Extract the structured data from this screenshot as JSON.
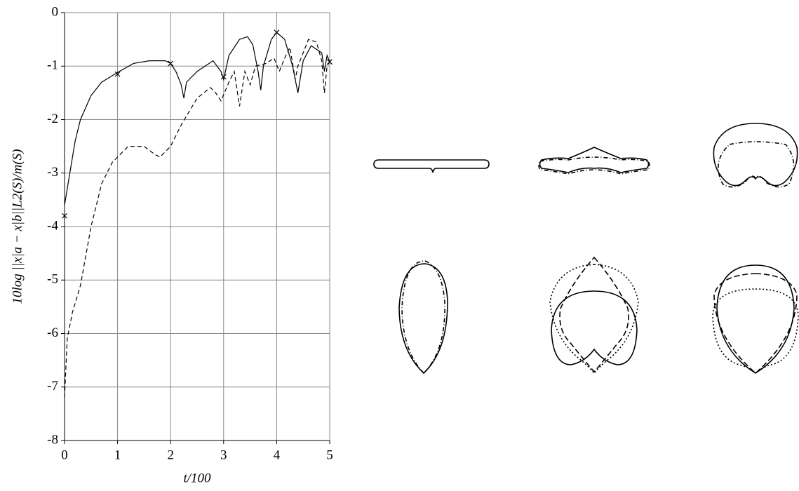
{
  "chart_data": {
    "type": "line",
    "xlabel": "t/100",
    "ylabel": "10log ||x|a − x|b||L2(S)/m(S)",
    "xlim": [
      0,
      5
    ],
    "ylim": [
      -8,
      0
    ],
    "xticks": [
      0,
      1,
      2,
      3,
      4,
      5
    ],
    "yticks": [
      0,
      -1,
      -2,
      -3,
      -4,
      -5,
      -6,
      -7,
      -8
    ],
    "grid": true,
    "series": [
      {
        "color": "#000000",
        "style": "solid",
        "x": [
          0,
          0.1,
          0.2,
          0.3,
          0.5,
          0.7,
          1,
          1.3,
          1.6,
          1.9,
          2.0,
          2.1,
          2.2,
          2.25,
          2.3,
          2.5,
          2.8,
          2.95,
          3.0,
          3.1,
          3.3,
          3.45,
          3.55,
          3.65,
          3.7,
          3.75,
          3.9,
          4.0,
          4.15,
          4.3,
          4.4,
          4.5,
          4.65,
          4.85,
          4.9,
          4.95,
          5.0
        ],
        "values": [
          -3.6,
          -3.0,
          -2.4,
          -2.0,
          -1.55,
          -1.3,
          -1.12,
          -0.95,
          -0.9,
          -0.9,
          -0.95,
          -1.1,
          -1.35,
          -1.6,
          -1.3,
          -1.1,
          -0.9,
          -1.1,
          -1.25,
          -0.8,
          -0.5,
          -0.45,
          -0.6,
          -1.1,
          -1.45,
          -1.0,
          -0.5,
          -0.37,
          -0.5,
          -1.0,
          -1.5,
          -0.9,
          -0.62,
          -0.75,
          -1.1,
          -0.8,
          -0.92
        ]
      },
      {
        "color": "#000000",
        "style": "dashed",
        "x": [
          0,
          0.05,
          0.15,
          0.3,
          0.5,
          0.7,
          0.9,
          1.2,
          1.5,
          1.7,
          1.8,
          2.0,
          2.2,
          2.5,
          2.75,
          2.85,
          2.95,
          3.1,
          3.2,
          3.3,
          3.4,
          3.5,
          3.6,
          3.8,
          3.95,
          4.05,
          4.15,
          4.25,
          4.35,
          4.4,
          4.6,
          4.75,
          4.85,
          4.9,
          4.95,
          5.0
        ],
        "values": [
          -7.2,
          -6.1,
          -5.6,
          -5.1,
          -4.0,
          -3.2,
          -2.8,
          -2.5,
          -2.5,
          -2.65,
          -2.7,
          -2.5,
          -2.1,
          -1.6,
          -1.4,
          -1.5,
          -1.65,
          -1.3,
          -1.1,
          -1.75,
          -1.1,
          -1.35,
          -1.0,
          -0.95,
          -0.85,
          -1.1,
          -0.85,
          -0.65,
          -1.25,
          -1.0,
          -0.5,
          -0.55,
          -0.9,
          -1.5,
          -1.0,
          -0.92
        ]
      },
      {
        "color": "#000000",
        "style": "none",
        "marker": "x",
        "x": [
          0,
          1,
          2,
          3,
          4,
          5
        ],
        "values": [
          -3.8,
          -1.15,
          -0.95,
          -1.2,
          -0.37,
          -0.92
        ]
      }
    ]
  }
}
